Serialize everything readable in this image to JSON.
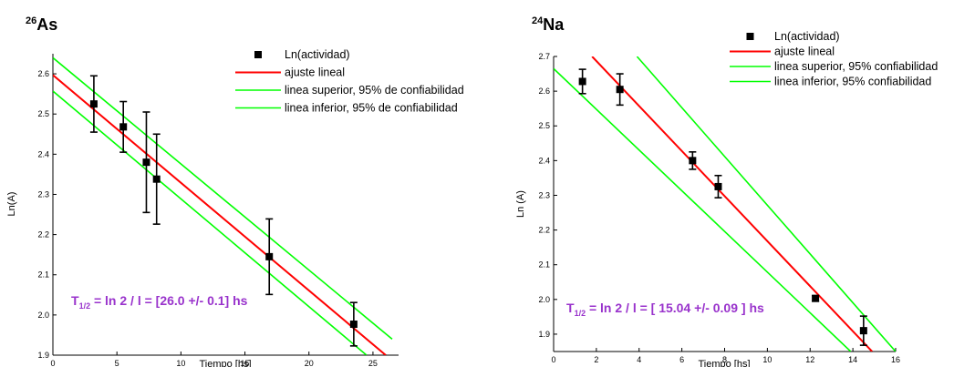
{
  "colors": {
    "fit": "#ff0000",
    "band": "#00ff00",
    "points": "#000000",
    "annotation": "#9933cc"
  },
  "chart_data": [
    {
      "type": "scatter",
      "title_sup": "26",
      "title_main": "As",
      "xlabel": "Tiempo [hs]",
      "ylabel": "Ln(A)",
      "xlim": [
        0,
        27
      ],
      "ylim": [
        1.9,
        2.65
      ],
      "xticks": [
        "0",
        "5",
        "10",
        "15",
        "20",
        "25"
      ],
      "xtick_values": [
        0,
        5,
        10,
        15,
        20,
        25
      ],
      "yticks": [
        "1.9",
        "2.0",
        "2.1",
        "2.2",
        "2.3",
        "2.4",
        "2.5",
        "2.6"
      ],
      "ytick_values": [
        1.9,
        2.0,
        2.1,
        2.2,
        2.3,
        2.4,
        2.5,
        2.6
      ],
      "legend_position": "top-right",
      "legend": [
        "Ln(actividad)",
        "ajuste lineal",
        "linea superior, 95% de confiabilidad",
        "linea inferior, 95% de confiabilidad"
      ],
      "points": [
        {
          "x": 3.2,
          "y": 2.525,
          "err": 0.07
        },
        {
          "x": 5.5,
          "y": 2.468,
          "err": 0.063
        },
        {
          "x": 7.3,
          "y": 2.38,
          "err": 0.125
        },
        {
          "x": 8.1,
          "y": 2.338,
          "err": 0.112
        },
        {
          "x": 16.9,
          "y": 2.145,
          "err": 0.094
        },
        {
          "x": 23.5,
          "y": 1.977,
          "err": 0.054
        }
      ],
      "fit_line": [
        [
          0,
          2.597
        ],
        [
          26,
          1.9
        ]
      ],
      "upper_line": [
        [
          0,
          2.64
        ],
        [
          26.5,
          1.94
        ]
      ],
      "lower_line": [
        [
          0,
          2.557
        ],
        [
          24.5,
          1.9
        ]
      ],
      "annotation_main": "T",
      "annotation_sub": "1/2",
      "annotation_text": " = ln 2 / l = [26.0 +/- 0.1] hs"
    },
    {
      "type": "scatter",
      "title_sup": "24",
      "title_main": "Na",
      "xlabel": "Tiempo [hs]",
      "ylabel": "Ln (A)",
      "xlim": [
        0,
        16
      ],
      "ylim": [
        1.85,
        2.7
      ],
      "xticks": [
        "0",
        "2",
        "4",
        "6",
        "8",
        "10",
        "12",
        "14",
        "16"
      ],
      "xtick_values": [
        0,
        2,
        4,
        6,
        8,
        10,
        12,
        14,
        16
      ],
      "yticks": [
        "1.9",
        "2.0",
        "2.1",
        "2.2",
        "2.3",
        "2.4",
        "2.5",
        "2.6",
        "2.7"
      ],
      "ytick_values": [
        1.9,
        2.0,
        2.1,
        2.2,
        2.3,
        2.4,
        2.5,
        2.6,
        2.7
      ],
      "legend_position": "top-right",
      "legend": [
        "Ln(actividad)",
        "ajuste lineal",
        "linea superior, 95% confiabilidad",
        "linea inferior, 95% confiabilidad"
      ],
      "points": [
        {
          "x": 1.35,
          "y": 2.628,
          "err": 0.035
        },
        {
          "x": 3.1,
          "y": 2.605,
          "err": 0.045
        },
        {
          "x": 6.5,
          "y": 2.4,
          "err": 0.025
        },
        {
          "x": 7.7,
          "y": 2.325,
          "err": 0.032
        },
        {
          "x": 12.25,
          "y": 2.003,
          "err": 0.008
        },
        {
          "x": 14.5,
          "y": 1.91,
          "err": 0.042
        }
      ],
      "fit_line": [
        [
          1.8,
          2.7
        ],
        [
          14.9,
          1.85
        ]
      ],
      "upper_line": [
        [
          3.9,
          2.7
        ],
        [
          16,
          1.85
        ]
      ],
      "lower_line": [
        [
          0,
          2.665
        ],
        [
          13.9,
          1.85
        ]
      ],
      "annotation_main": "T",
      "annotation_sub": "1/2",
      "annotation_text": " = ln 2 / l = [ 15.04  +/- 0.09 ] hs"
    }
  ]
}
